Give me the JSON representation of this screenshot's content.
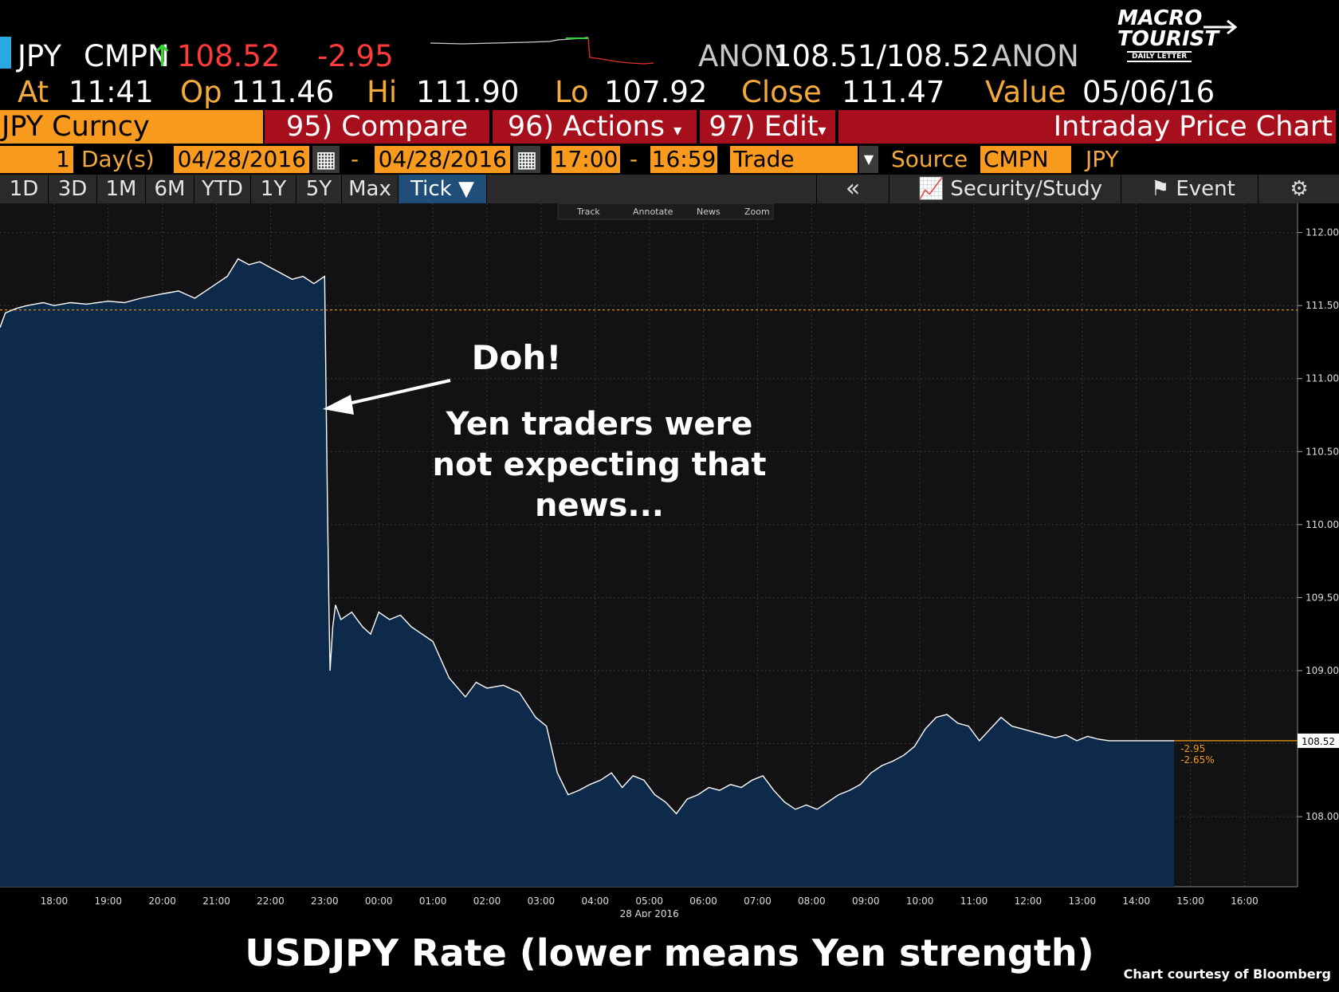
{
  "header": {
    "ticker": "JPY",
    "source": "CMPN",
    "arrow": "↑",
    "last": "108.52",
    "change": "-2.95",
    "bid_src": "ANON",
    "bid_ask": "108.51/108.52",
    "ask_src": "ANON",
    "at_label": "At",
    "at_time": "11:41",
    "op_label": "Op",
    "op": "111.46",
    "hi_label": "Hi",
    "hi": "111.90",
    "lo_label": "Lo",
    "lo": "107.92",
    "close_label": "Close",
    "close": "111.47",
    "value_label": "Value",
    "value": "05/06/16"
  },
  "logo": {
    "line1": "MACRO",
    "line2": "TOURIST",
    "line3": "DAILY LETTER"
  },
  "menubar": {
    "security": "JPY Curncy",
    "compare": "95) Compare",
    "actions": "96) Actions",
    "edit": "97) Edit",
    "view_title": "Intraday Price Chart"
  },
  "settings": {
    "period_num": "1",
    "period_unit": "Day(s)",
    "start_date": "04/28/2016",
    "dash1": "-",
    "end_date": "04/28/2016",
    "start_time": "17:00",
    "dash2": "-",
    "end_time": "16:59",
    "data_type": "Trade",
    "source_label": "Source",
    "source_value": "CMPN",
    "currency": "JPY"
  },
  "tabs": [
    "1D",
    "3D",
    "1M",
    "6M",
    "YTD",
    "1Y",
    "5Y",
    "Max"
  ],
  "tick_label": "Tick ▼",
  "toolbar": {
    "collapse": "«",
    "study": "Security/Study",
    "event": "Event",
    "gear": "⚙"
  },
  "chart_tools": [
    "Track",
    "Annotate",
    "News",
    "Zoom"
  ],
  "annotation": {
    "doh": "Doh!",
    "line1": "Yen traders were",
    "line2": "not expecting that",
    "line3": "news..."
  },
  "footer": {
    "title": "USDJPY Rate (lower means Yen strength)",
    "credit": "Chart courtesy of Bloomberg"
  },
  "colors": {
    "area": "#0e2a4a",
    "line": "#ffffff",
    "ref": "#f39c12",
    "grid": "#3a3a3a",
    "bg": "#121214"
  },
  "chart_data": {
    "type": "area",
    "x_ticks": [
      "18:00",
      "19:00",
      "20:00",
      "21:00",
      "22:00",
      "23:00",
      "00:00",
      "01:00",
      "02:00",
      "03:00",
      "04:00",
      "05:00",
      "06:00",
      "07:00",
      "08:00",
      "09:00",
      "10:00",
      "11:00",
      "12:00",
      "13:00",
      "14:00",
      "15:00",
      "16:00"
    ],
    "x_date_label": "28 Apr 2016",
    "y_ticks": [
      "112.00",
      "111.50",
      "111.00",
      "110.50",
      "110.00",
      "109.50",
      "109.00",
      "108.50",
      "108.00"
    ],
    "ylim": [
      107.52,
      112.2
    ],
    "xlim": [
      17.0,
      40.98
    ],
    "prev_close": 111.47,
    "last": 108.52,
    "last_label": "108.52",
    "change_label": "-2.95",
    "pct_label": "-2.65%",
    "series": [
      {
        "x": [
          17.0,
          17.1,
          17.3,
          17.5,
          17.8,
          18.0,
          18.3,
          18.6,
          19.0,
          19.3,
          19.6,
          20.0,
          20.3,
          20.6,
          21.0,
          21.2,
          21.4,
          21.6,
          21.8,
          22.0,
          22.2,
          22.4,
          22.6,
          22.8,
          23.0,
          23.05,
          23.08,
          23.1,
          23.15,
          23.2,
          23.3,
          23.5,
          23.7,
          23.85,
          24.0,
          24.2,
          24.4,
          24.6,
          24.8,
          25.0,
          25.3,
          25.6,
          25.8,
          26.0,
          26.3,
          26.6,
          26.9,
          27.1,
          27.3,
          27.5,
          27.7,
          27.9,
          28.1,
          28.3,
          28.5,
          28.7,
          28.9,
          29.1,
          29.3,
          29.5,
          29.7,
          29.9,
          30.1,
          30.3,
          30.5,
          30.7,
          30.9,
          31.1,
          31.3,
          31.5,
          31.7,
          31.9,
          32.1,
          32.3,
          32.5,
          32.7,
          32.9,
          33.1,
          33.3,
          33.5,
          33.7,
          33.9,
          34.1,
          34.3,
          34.5,
          34.7,
          34.9,
          35.1,
          35.3,
          35.5,
          35.7,
          35.9,
          36.1,
          36.3,
          36.5,
          36.7,
          36.9,
          37.1,
          37.3,
          37.5,
          37.7,
          37.9,
          38.1,
          38.3,
          38.5,
          38.7
        ],
        "y": [
          111.35,
          111.45,
          111.48,
          111.5,
          111.52,
          111.5,
          111.52,
          111.51,
          111.53,
          111.52,
          111.55,
          111.58,
          111.6,
          111.55,
          111.65,
          111.7,
          111.82,
          111.78,
          111.8,
          111.76,
          111.72,
          111.68,
          111.7,
          111.65,
          111.7,
          110.2,
          109.4,
          109.0,
          109.3,
          109.45,
          109.35,
          109.4,
          109.3,
          109.25,
          109.4,
          109.35,
          109.38,
          109.3,
          109.25,
          109.2,
          108.95,
          108.82,
          108.92,
          108.88,
          108.9,
          108.85,
          108.68,
          108.62,
          108.3,
          108.15,
          108.18,
          108.22,
          108.25,
          108.3,
          108.2,
          108.28,
          108.25,
          108.15,
          108.1,
          108.02,
          108.12,
          108.15,
          108.2,
          108.18,
          108.22,
          108.2,
          108.25,
          108.28,
          108.18,
          108.1,
          108.05,
          108.08,
          108.05,
          108.1,
          108.15,
          108.18,
          108.22,
          108.3,
          108.35,
          108.38,
          108.42,
          108.48,
          108.6,
          108.68,
          108.7,
          108.64,
          108.62,
          108.52,
          108.6,
          108.68,
          108.62,
          108.6,
          108.58,
          108.56,
          108.54,
          108.56,
          108.52,
          108.55,
          108.53,
          108.52,
          108.52,
          108.52,
          108.52,
          108.52,
          108.52,
          108.52
        ]
      }
    ]
  }
}
